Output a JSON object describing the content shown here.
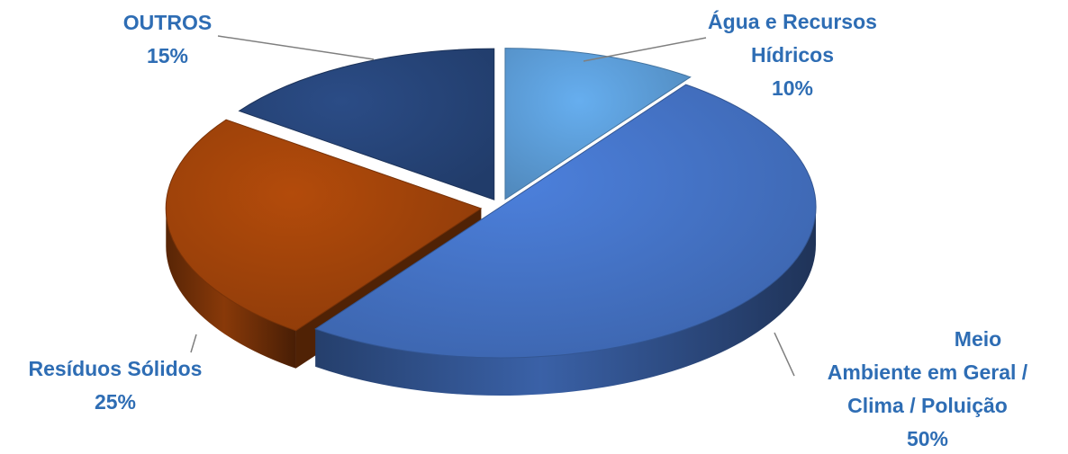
{
  "chart_data": {
    "type": "pie",
    "title": "",
    "style": "3d-exploded",
    "label_color": "#2E6DB4",
    "leader_color": "#7F7F7F",
    "slices": [
      {
        "label_lines": [
          "Água e Recursos",
          "Hídricos"
        ],
        "percent_label": "10%",
        "value": 10,
        "color": "#5B9BD5"
      },
      {
        "label_lines": [
          "Meio",
          "Ambiente em Geral /",
          "Clima / Poluição"
        ],
        "percent_label": "50%",
        "value": 50,
        "color": "#4472C4"
      },
      {
        "label_lines": [
          "Resíduos Sólidos"
        ],
        "percent_label": "25%",
        "value": 25,
        "color": "#A0430A"
      },
      {
        "label_lines": [
          "OUTROS"
        ],
        "percent_label": "15%",
        "value": 15,
        "color": "#264478"
      }
    ]
  }
}
